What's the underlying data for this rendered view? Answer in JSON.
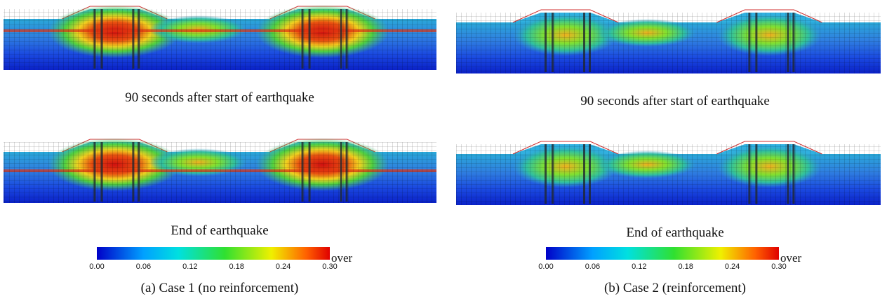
{
  "panels": [
    {
      "images": [
        {
          "caption": "90 seconds after start of earthquake"
        },
        {
          "caption": "End of earthquake"
        }
      ],
      "colorbar": {
        "ticks": [
          "0.00",
          "0.06",
          "0.12",
          "0.18",
          "0.24",
          "0.30"
        ],
        "over_label": "over"
      },
      "caption": "(a) Case 1 (no reinforcement)"
    },
    {
      "images": [
        {
          "caption": "90 seconds after start of earthquake"
        },
        {
          "caption": "End of earthquake"
        }
      ],
      "colorbar": {
        "ticks": [
          "0.00",
          "0.06",
          "0.12",
          "0.18",
          "0.24",
          "0.30"
        ],
        "over_label": "over"
      },
      "caption": "(b) Case 2 (reinforcement)"
    }
  ]
}
